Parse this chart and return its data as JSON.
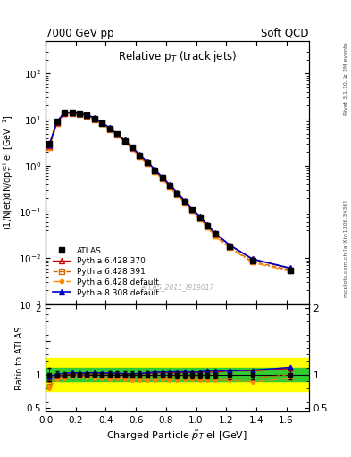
{
  "title_left": "7000 GeV pp",
  "title_right": "Soft QCD",
  "plot_title": "Relative p$_T$ (track jets)",
  "xlabel": "Charged Particle $\\tilde{p}_T$ el [GeV]",
  "ylabel_main": "(1/Njet)dN/dp$^\\mathrm{rel}_T$ el [GeV$^{-1}$]",
  "ylabel_ratio": "Ratio to ATLAS",
  "right_label_top": "Rivet 3.1.10, ≥ 2M events",
  "right_label_bottom": "mcplots.cern.ch [arXiv:1306.3436]",
  "watermark": "ATLAS_2011_I919017",
  "x_data": [
    0.025,
    0.075,
    0.125,
    0.175,
    0.225,
    0.275,
    0.325,
    0.375,
    0.425,
    0.475,
    0.525,
    0.575,
    0.625,
    0.675,
    0.725,
    0.775,
    0.825,
    0.875,
    0.925,
    0.975,
    1.025,
    1.075,
    1.125,
    1.225,
    1.375,
    1.625
  ],
  "atlas_y": [
    3.0,
    9.0,
    14.0,
    14.0,
    13.5,
    12.5,
    10.5,
    8.5,
    6.5,
    4.8,
    3.5,
    2.5,
    1.7,
    1.2,
    0.8,
    0.55,
    0.37,
    0.25,
    0.165,
    0.11,
    0.075,
    0.05,
    0.033,
    0.018,
    0.009,
    0.0055
  ],
  "atlas_yerr": [
    0.3,
    0.4,
    0.5,
    0.5,
    0.5,
    0.45,
    0.4,
    0.35,
    0.28,
    0.22,
    0.16,
    0.12,
    0.08,
    0.06,
    0.04,
    0.028,
    0.019,
    0.013,
    0.009,
    0.006,
    0.004,
    0.003,
    0.002,
    0.0012,
    0.0006,
    0.0004
  ],
  "py6_370_y": [
    2.8,
    8.8,
    13.8,
    14.2,
    13.6,
    12.6,
    10.6,
    8.6,
    6.6,
    4.85,
    3.52,
    2.52,
    1.72,
    1.22,
    0.82,
    0.565,
    0.38,
    0.255,
    0.17,
    0.113,
    0.077,
    0.052,
    0.034,
    0.019,
    0.0095,
    0.006
  ],
  "py6_391_y": [
    2.5,
    8.5,
    13.5,
    13.8,
    13.3,
    12.2,
    10.2,
    8.2,
    6.2,
    4.6,
    3.35,
    2.38,
    1.62,
    1.15,
    0.76,
    0.53,
    0.355,
    0.24,
    0.16,
    0.106,
    0.072,
    0.048,
    0.031,
    0.017,
    0.0085,
    0.0055
  ],
  "py6_def_y": [
    2.4,
    8.3,
    13.2,
    13.5,
    13.0,
    11.9,
    9.9,
    8.0,
    6.0,
    4.5,
    3.25,
    2.3,
    1.56,
    1.1,
    0.73,
    0.51,
    0.34,
    0.23,
    0.153,
    0.102,
    0.069,
    0.046,
    0.03,
    0.0165,
    0.008,
    0.0052
  ],
  "py8_def_y": [
    2.9,
    9.1,
    14.2,
    14.4,
    13.8,
    12.8,
    10.8,
    8.7,
    6.65,
    4.9,
    3.55,
    2.53,
    1.73,
    1.23,
    0.83,
    0.57,
    0.385,
    0.26,
    0.172,
    0.114,
    0.078,
    0.053,
    0.035,
    0.019,
    0.0096,
    0.0061
  ],
  "color_atlas": "#000000",
  "color_py6_370": "#cc0000",
  "color_py6_391": "#cc6600",
  "color_py6_def": "#ff8800",
  "color_py8_def": "#0000cc",
  "ylim_main": [
    0.001,
    500
  ],
  "ylim_ratio": [
    0.45,
    2.05
  ],
  "xlim": [
    0.0,
    1.75
  ]
}
